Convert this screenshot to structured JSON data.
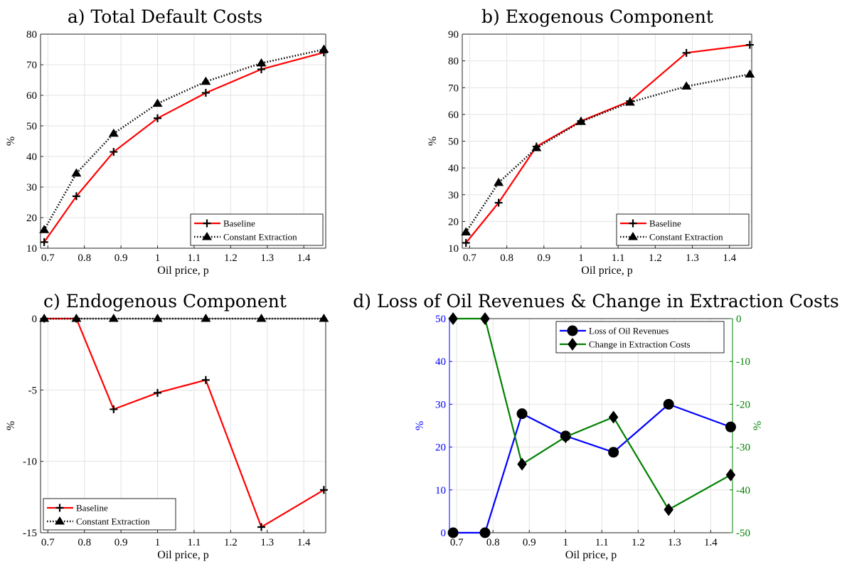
{
  "chart_data": [
    {
      "type": "line",
      "title": "a) Total Default Costs",
      "xlabel": "Oil price, p",
      "ylabel": "%",
      "xlim": [
        0.68,
        1.46
      ],
      "ylim": [
        10,
        80
      ],
      "xticks": [
        0.7,
        0.8,
        0.9,
        1,
        1.1,
        1.2,
        1.3,
        1.4
      ],
      "xtick_labels": [
        "0.7",
        "0.8",
        "0.9",
        "1",
        "1.1",
        "1.2",
        "1.3",
        "1.4"
      ],
      "yticks": [
        10,
        20,
        30,
        40,
        50,
        60,
        70,
        80
      ],
      "ytick_labels": [
        "10",
        "20",
        "30",
        "40",
        "50",
        "60",
        "70",
        "80"
      ],
      "x": [
        0.69,
        0.778,
        0.88,
        1.0,
        1.132,
        1.284,
        1.455
      ],
      "grid": true,
      "legend_position": "bottom-right",
      "series": [
        {
          "name": "Baseline",
          "values": [
            12,
            27,
            41.5,
            52.5,
            60.8,
            68.5,
            74
          ],
          "color": "#ff0000",
          "style": "solid",
          "marker": "plus"
        },
        {
          "name": "Constant Extraction",
          "values": [
            16,
            34.5,
            47.5,
            57.3,
            64.5,
            70.5,
            75
          ],
          "color": "#000000",
          "style": "dotted",
          "marker": "triangle"
        }
      ]
    },
    {
      "type": "line",
      "title": "b) Exogenous Component",
      "xlabel": "Oil price, p",
      "ylabel": "%",
      "xlim": [
        0.68,
        1.46
      ],
      "ylim": [
        10,
        90
      ],
      "xticks": [
        0.7,
        0.8,
        0.9,
        1,
        1.1,
        1.2,
        1.3,
        1.4
      ],
      "xtick_labels": [
        "0.7",
        "0.8",
        "0.9",
        "1",
        "1.1",
        "1.2",
        "1.3",
        "1.4"
      ],
      "yticks": [
        10,
        20,
        30,
        40,
        50,
        60,
        70,
        80,
        90
      ],
      "ytick_labels": [
        "10",
        "20",
        "30",
        "40",
        "50",
        "60",
        "70",
        "80",
        "90"
      ],
      "x": [
        0.69,
        0.778,
        0.88,
        1.0,
        1.132,
        1.284,
        1.455
      ],
      "grid": true,
      "legend_position": "bottom-right",
      "series": [
        {
          "name": "Baseline",
          "values": [
            12,
            27,
            48,
            57.5,
            65,
            83,
            86
          ],
          "color": "#ff0000",
          "style": "solid",
          "marker": "plus"
        },
        {
          "name": "Constant Extraction",
          "values": [
            16,
            34.5,
            47.5,
            57.3,
            64.5,
            70.5,
            75
          ],
          "color": "#000000",
          "style": "dotted",
          "marker": "triangle"
        }
      ]
    },
    {
      "type": "line",
      "title": "c) Endogenous Component",
      "xlabel": "Oil price, p",
      "ylabel": "%",
      "xlim": [
        0.68,
        1.46
      ],
      "ylim": [
        -15,
        0
      ],
      "xticks": [
        0.7,
        0.8,
        0.9,
        1,
        1.1,
        1.2,
        1.3,
        1.4
      ],
      "xtick_labels": [
        "0.7",
        "0.8",
        "0.9",
        "1",
        "1.1",
        "1.2",
        "1.3",
        "1.4"
      ],
      "yticks": [
        -15,
        -10,
        -5,
        0
      ],
      "ytick_labels": [
        "-15",
        "-10",
        "-5",
        "0"
      ],
      "x": [
        0.69,
        0.778,
        0.88,
        1.0,
        1.132,
        1.284,
        1.455
      ],
      "grid": true,
      "legend_position": "bottom-left",
      "series": [
        {
          "name": "Baseline",
          "values": [
            0,
            0,
            -6.35,
            -5.2,
            -4.3,
            -14.6,
            -12
          ],
          "color": "#ff0000",
          "style": "solid",
          "marker": "plus"
        },
        {
          "name": "Constant Extraction",
          "values": [
            0,
            0,
            0,
            0,
            0,
            0,
            0
          ],
          "color": "#000000",
          "style": "dotted",
          "marker": "triangle"
        }
      ]
    },
    {
      "type": "line",
      "title": "d) Loss of Oil Revenues & Change in Extraction Costs",
      "xlabel": "Oil price, p",
      "ylabel": "%",
      "ylabel_right": "%",
      "xlim": [
        0.68,
        1.46
      ],
      "ylim": [
        0,
        50
      ],
      "ylim_right": [
        -50,
        0
      ],
      "xticks": [
        0.7,
        0.8,
        0.9,
        1,
        1.1,
        1.2,
        1.3,
        1.4
      ],
      "xtick_labels": [
        "0.7",
        "0.8",
        "0.9",
        "1",
        "1.1",
        "1.2",
        "1.3",
        "1.4"
      ],
      "yticks": [
        0,
        10,
        20,
        30,
        40,
        50
      ],
      "ytick_labels": [
        "0",
        "10",
        "20",
        "30",
        "40",
        "50"
      ],
      "yticks_right": [
        -50,
        -40,
        -30,
        -20,
        -10,
        0
      ],
      "ytick_labels_right": [
        "-50",
        "-40",
        "-30",
        "-20",
        "-10",
        "0"
      ],
      "left_axis_color": "#0000ff",
      "right_axis_color": "#008000",
      "x": [
        0.69,
        0.778,
        0.88,
        1.0,
        1.132,
        1.284,
        1.455
      ],
      "grid": true,
      "legend_position": "top-right",
      "series": [
        {
          "name": "Loss of Oil Revenues",
          "axis": "left",
          "values": [
            0,
            0,
            27.8,
            22.6,
            18.8,
            30,
            24.7
          ],
          "color": "#0000ff",
          "style": "solid",
          "marker": "circle"
        },
        {
          "name": "Change in Extraction Costs",
          "axis": "right",
          "values": [
            0,
            0,
            -34,
            -27.6,
            -23,
            -44.6,
            -36.5
          ],
          "color": "#008000",
          "style": "solid",
          "marker": "diamond"
        }
      ]
    }
  ]
}
